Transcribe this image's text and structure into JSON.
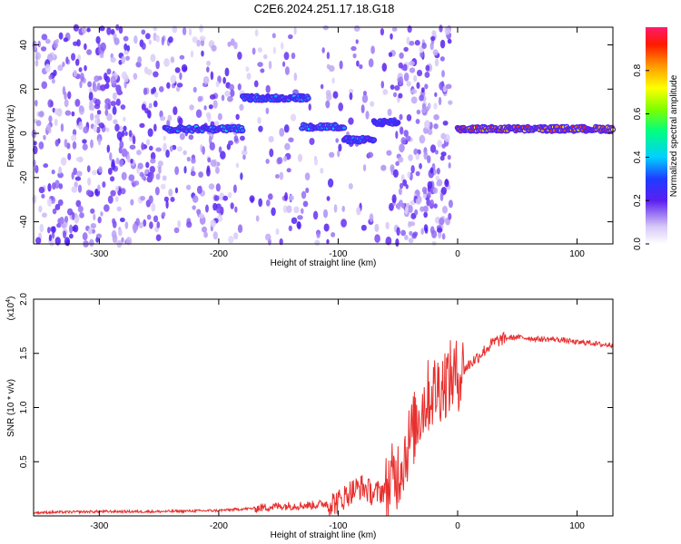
{
  "title": "C2E6.2024.251.17.18.G18",
  "colors": {
    "snr_line": "#e8302e",
    "spectro_base": "#7a2cf0",
    "axis": "#000000"
  },
  "chart_data": [
    {
      "type": "heatmap",
      "xlabel": "Height of straight line (km)",
      "ylabel": "Frequency (Hz)",
      "xlim": [
        -355,
        130
      ],
      "ylim": [
        -50,
        48
      ],
      "x_ticks": [
        -300,
        -200,
        -100,
        0,
        100
      ],
      "y_ticks": [
        -40,
        -20,
        0,
        20,
        40
      ],
      "colorbar": {
        "label": "Normalized spectral amplitude",
        "ticks": [
          0.0,
          0.2,
          0.4,
          0.6,
          0.8
        ],
        "range": [
          0,
          1
        ]
      },
      "features": [
        {
          "x_range": [
            -245,
            -180
          ],
          "freq": 2,
          "amplitude": 0.45
        },
        {
          "x_range": [
            -180,
            -125
          ],
          "freq": 16,
          "amplitude": 0.4
        },
        {
          "x_range": [
            -130,
            -95
          ],
          "freq": 3,
          "amplitude": 0.45
        },
        {
          "x_range": [
            -95,
            -70
          ],
          "freq": -3,
          "amplitude": 0.4
        },
        {
          "x_range": [
            -70,
            -50
          ],
          "freq": 5,
          "amplitude": 0.35
        },
        {
          "x_range": [
            0,
            130
          ],
          "freq": 2,
          "amplitude": 0.95
        }
      ]
    },
    {
      "type": "line",
      "xlabel": "Height of straight line (km)",
      "ylabel": "SNR (10 * v/v)",
      "y_multiplier": "(x10",
      "y_multiplier_exp": "4",
      "y_multiplier_close": ")",
      "xlim": [
        -355,
        130
      ],
      "ylim": [
        0,
        2.0
      ],
      "x_ticks": [
        -300,
        -200,
        -100,
        0,
        100
      ],
      "y_ticks": [
        0.5,
        1.0,
        1.5,
        2.0
      ],
      "y_tick_labels": [
        "0.5",
        "1.0",
        "1.5",
        "2.0"
      ],
      "series": [
        {
          "x": [
            -355,
            -300,
            -250,
            -200,
            -170,
            -150,
            -120,
            -100,
            -90,
            -80,
            -70,
            -60,
            -50,
            -45,
            -40,
            -35,
            -30,
            -25,
            -20,
            -15,
            -10,
            -5,
            0,
            5,
            10,
            20,
            30,
            40,
            50,
            60,
            70,
            80,
            90,
            100,
            110,
            120,
            130
          ],
          "y": [
            0.03,
            0.04,
            0.04,
            0.05,
            0.07,
            0.09,
            0.1,
            0.13,
            0.22,
            0.27,
            0.2,
            0.25,
            0.4,
            0.55,
            0.7,
            0.85,
            1.0,
            1.1,
            1.15,
            1.2,
            1.25,
            1.28,
            1.3,
            1.35,
            1.4,
            1.5,
            1.6,
            1.64,
            1.65,
            1.64,
            1.63,
            1.63,
            1.62,
            1.6,
            1.6,
            1.58,
            1.58
          ]
        }
      ]
    }
  ]
}
